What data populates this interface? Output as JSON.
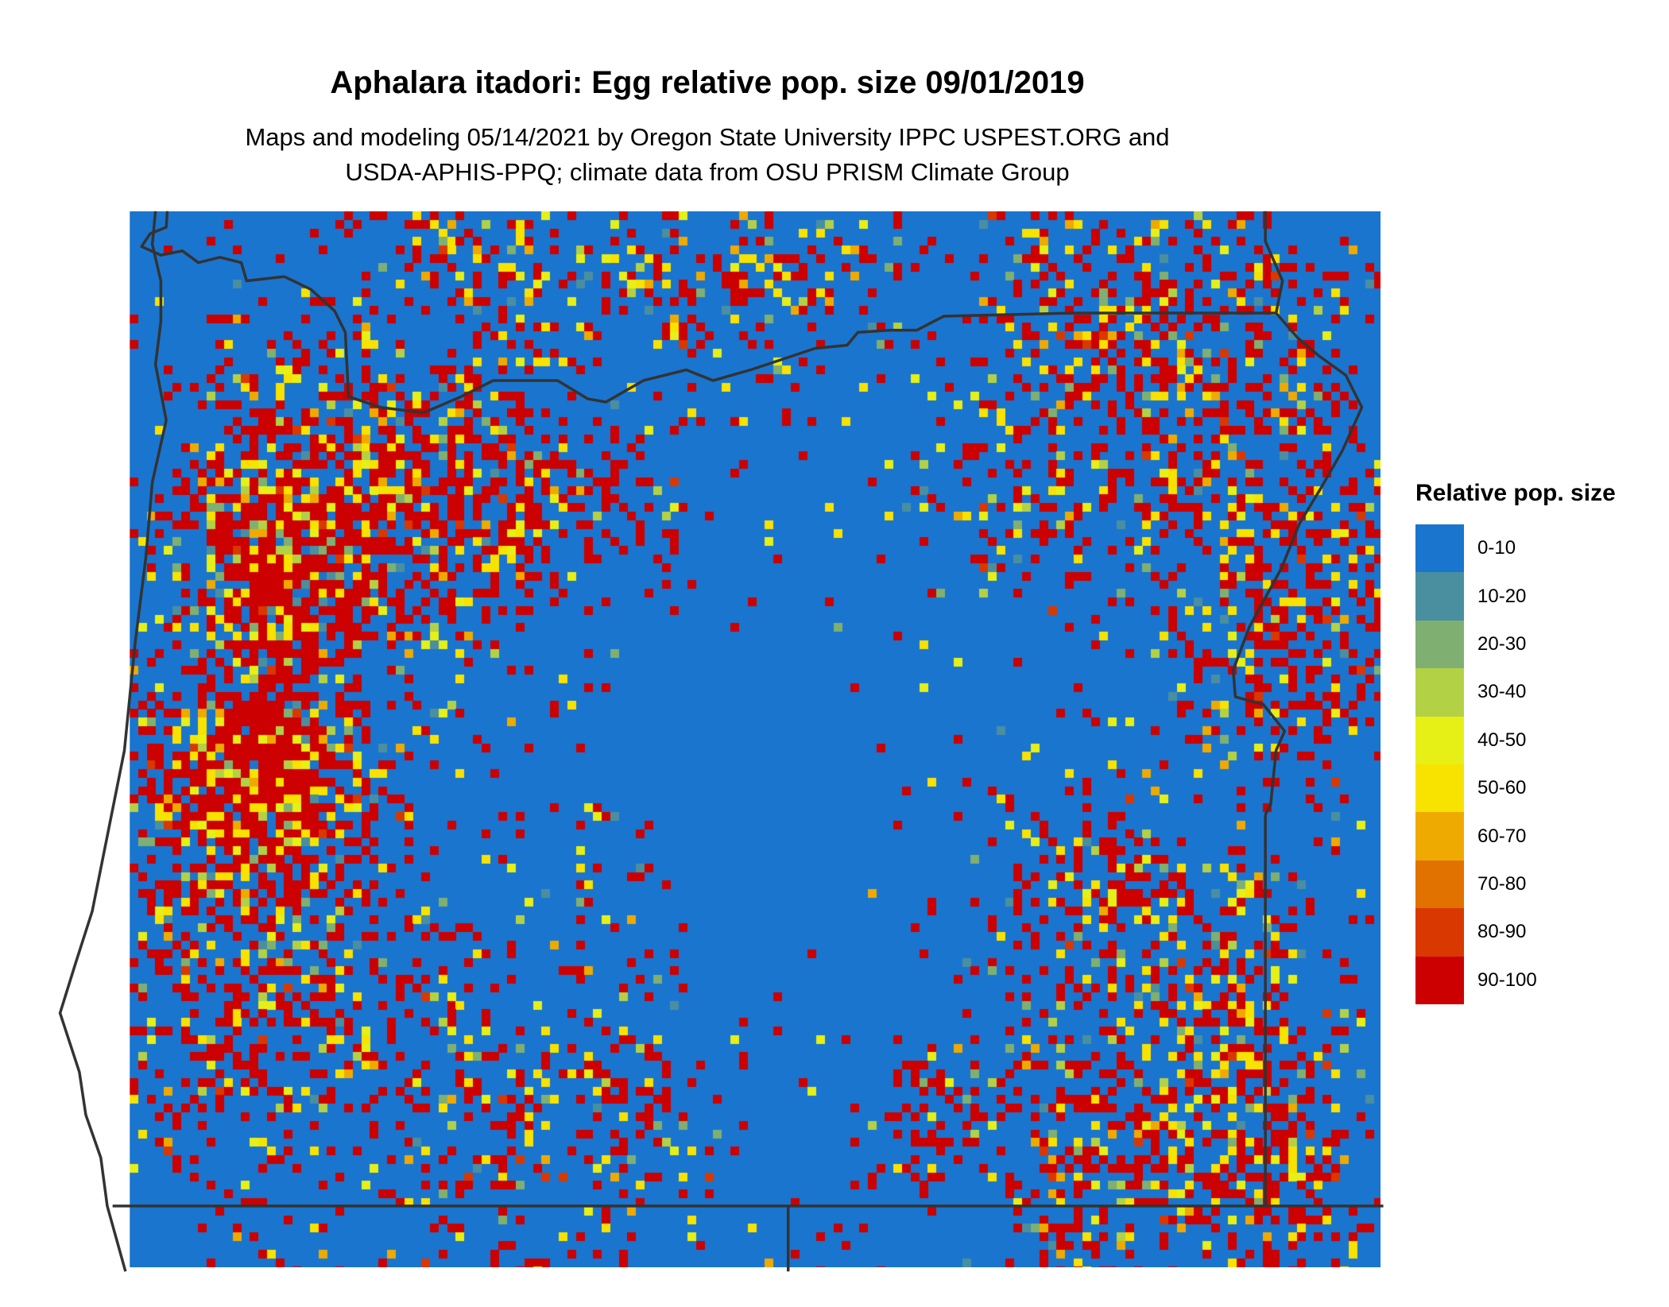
{
  "title": "Aphalara itadori: Egg relative pop. size 09/01/2019",
  "subtitle_lines": [
    "Maps and modeling 05/14/2021 by Oregon State University IPPC USPEST.ORG and",
    "USDA-APHIS-PPQ; climate data from OSU PRISM Climate Group"
  ],
  "legend": {
    "title": "Relative pop. size",
    "items": [
      {
        "label": "0-10",
        "color": "#1A75CF"
      },
      {
        "label": "10-20",
        "color": "#4A8F9F"
      },
      {
        "label": "20-30",
        "color": "#7FB071"
      },
      {
        "label": "30-40",
        "color": "#B3D145"
      },
      {
        "label": "40-50",
        "color": "#E6F016"
      },
      {
        "label": "50-60",
        "color": "#F8E200"
      },
      {
        "label": "60-70",
        "color": "#EFAA00"
      },
      {
        "label": "70-80",
        "color": "#E27200"
      },
      {
        "label": "80-90",
        "color": "#D93800"
      },
      {
        "label": "90-100",
        "color": "#CC0000"
      }
    ]
  },
  "map": {
    "region": "Oregon",
    "boundary_color": "#333333",
    "background_class": "0-10"
  }
}
